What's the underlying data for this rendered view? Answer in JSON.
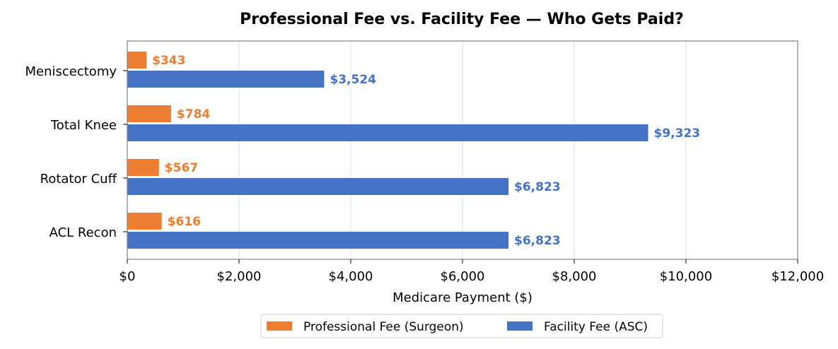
{
  "chart_data": {
    "type": "bar",
    "orientation": "horizontal",
    "title": "Professional Fee vs. Facility Fee — Who Gets Paid?",
    "xlabel": "Medicare Payment ($)",
    "ylabel": "",
    "xlim": [
      0,
      12000
    ],
    "xticks": [
      0,
      2000,
      4000,
      6000,
      8000,
      10000,
      12000
    ],
    "xtick_labels": [
      "$0",
      "$2,000",
      "$4,000",
      "$6,000",
      "$8,000",
      "$10,000",
      "$12,000"
    ],
    "grid": "vertical",
    "legend_position": "bottom-center",
    "categories": [
      "Meniscectomy",
      "Total Knee",
      "Rotator Cuff",
      "ACL Recon"
    ],
    "series": [
      {
        "name": "Professional Fee (Surgeon)",
        "color": "#ED7D31",
        "values": [
          343,
          784,
          567,
          616
        ],
        "labels": [
          "$343",
          "$784",
          "$567",
          "$616"
        ]
      },
      {
        "name": "Facility Fee (ASC)",
        "color": "#4472C4",
        "values": [
          3524,
          9323,
          6823,
          6823
        ],
        "labels": [
          "$3,524",
          "$9,323",
          "$6,823",
          "$6,823"
        ]
      }
    ]
  }
}
